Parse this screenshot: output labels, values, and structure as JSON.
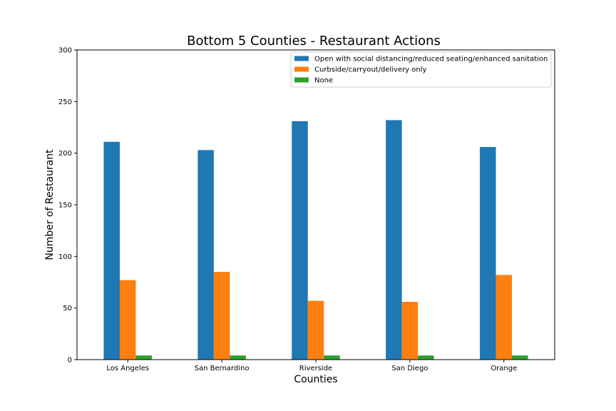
{
  "chart_data": {
    "type": "bar",
    "title": "Bottom 5 Counties - Restaurant Actions",
    "xlabel": "Counties",
    "ylabel": "Number of Restaurant",
    "categories": [
      "Los Angeles",
      "San Bernardino",
      "Riverside",
      "San Diego",
      "Orange"
    ],
    "series": [
      {
        "name": "Open with social distancing/reduced seating/enhanced sanitation",
        "color": "#1f77b4",
        "values": [
          211,
          203,
          231,
          232,
          206
        ]
      },
      {
        "name": "Curbside/carryout/delivery only",
        "color": "#ff7f0e",
        "values": [
          77,
          85,
          57,
          56,
          82
        ]
      },
      {
        "name": "None",
        "color": "#2ca02c",
        "values": [
          4,
          4,
          4,
          4,
          4
        ]
      }
    ],
    "ylim": [
      0,
      300
    ],
    "yticks": [
      0,
      50,
      100,
      150,
      200,
      250,
      300
    ],
    "grid": false,
    "legend_position": "top-right"
  }
}
